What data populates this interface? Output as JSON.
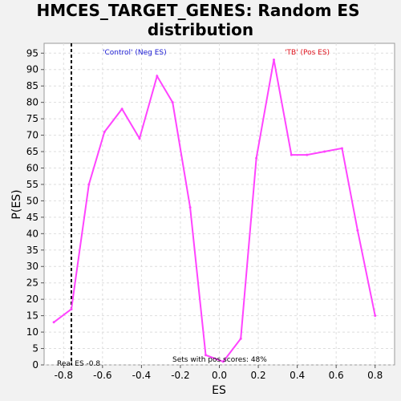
{
  "chart_data": {
    "type": "line",
    "title": "HMCES_TARGET_GENES: Random ES distribution",
    "title_lines": [
      "HMCES_TARGET_GENES: Random ES",
      "distribution"
    ],
    "xlabel": "ES",
    "ylabel": "P(ES)",
    "xlim": [
      -0.9,
      0.9
    ],
    "ylim": [
      0,
      98
    ],
    "xticks": [
      -0.8,
      -0.6,
      -0.4,
      -0.2,
      0.0,
      0.2,
      0.4,
      0.6,
      0.8
    ],
    "xtick_labels": [
      "-0.8",
      "-0.6",
      "-0.4",
      "-0.2",
      "0.0",
      "0.2",
      "0.4",
      "0.6",
      "0.8"
    ],
    "yticks": [
      0,
      5,
      10,
      15,
      20,
      25,
      30,
      35,
      40,
      45,
      50,
      55,
      60,
      65,
      70,
      75,
      80,
      85,
      90,
      95
    ],
    "grid": true,
    "series": [
      {
        "color": "#ff44ff",
        "x": [
          -0.85,
          -0.76,
          -0.67,
          -0.59,
          -0.5,
          -0.41,
          -0.32,
          -0.24,
          -0.15,
          -0.07,
          0.02,
          0.11,
          0.19,
          0.28,
          0.37,
          0.45,
          0.54,
          0.63,
          0.71,
          0.8
        ],
        "y": [
          13,
          17,
          55,
          71,
          78,
          69,
          88,
          80,
          48,
          3,
          1,
          8,
          63,
          93,
          64,
          64,
          65,
          66,
          41,
          15
        ]
      }
    ],
    "real_es": {
      "value": -0.76,
      "label": "Real ES -0.8"
    },
    "annotations": {
      "neg_label": "'Control' (Neg ES)",
      "pos_label": "'TB' (Pos ES)",
      "pos_scores": "Sets with pos scores: 48%"
    }
  }
}
